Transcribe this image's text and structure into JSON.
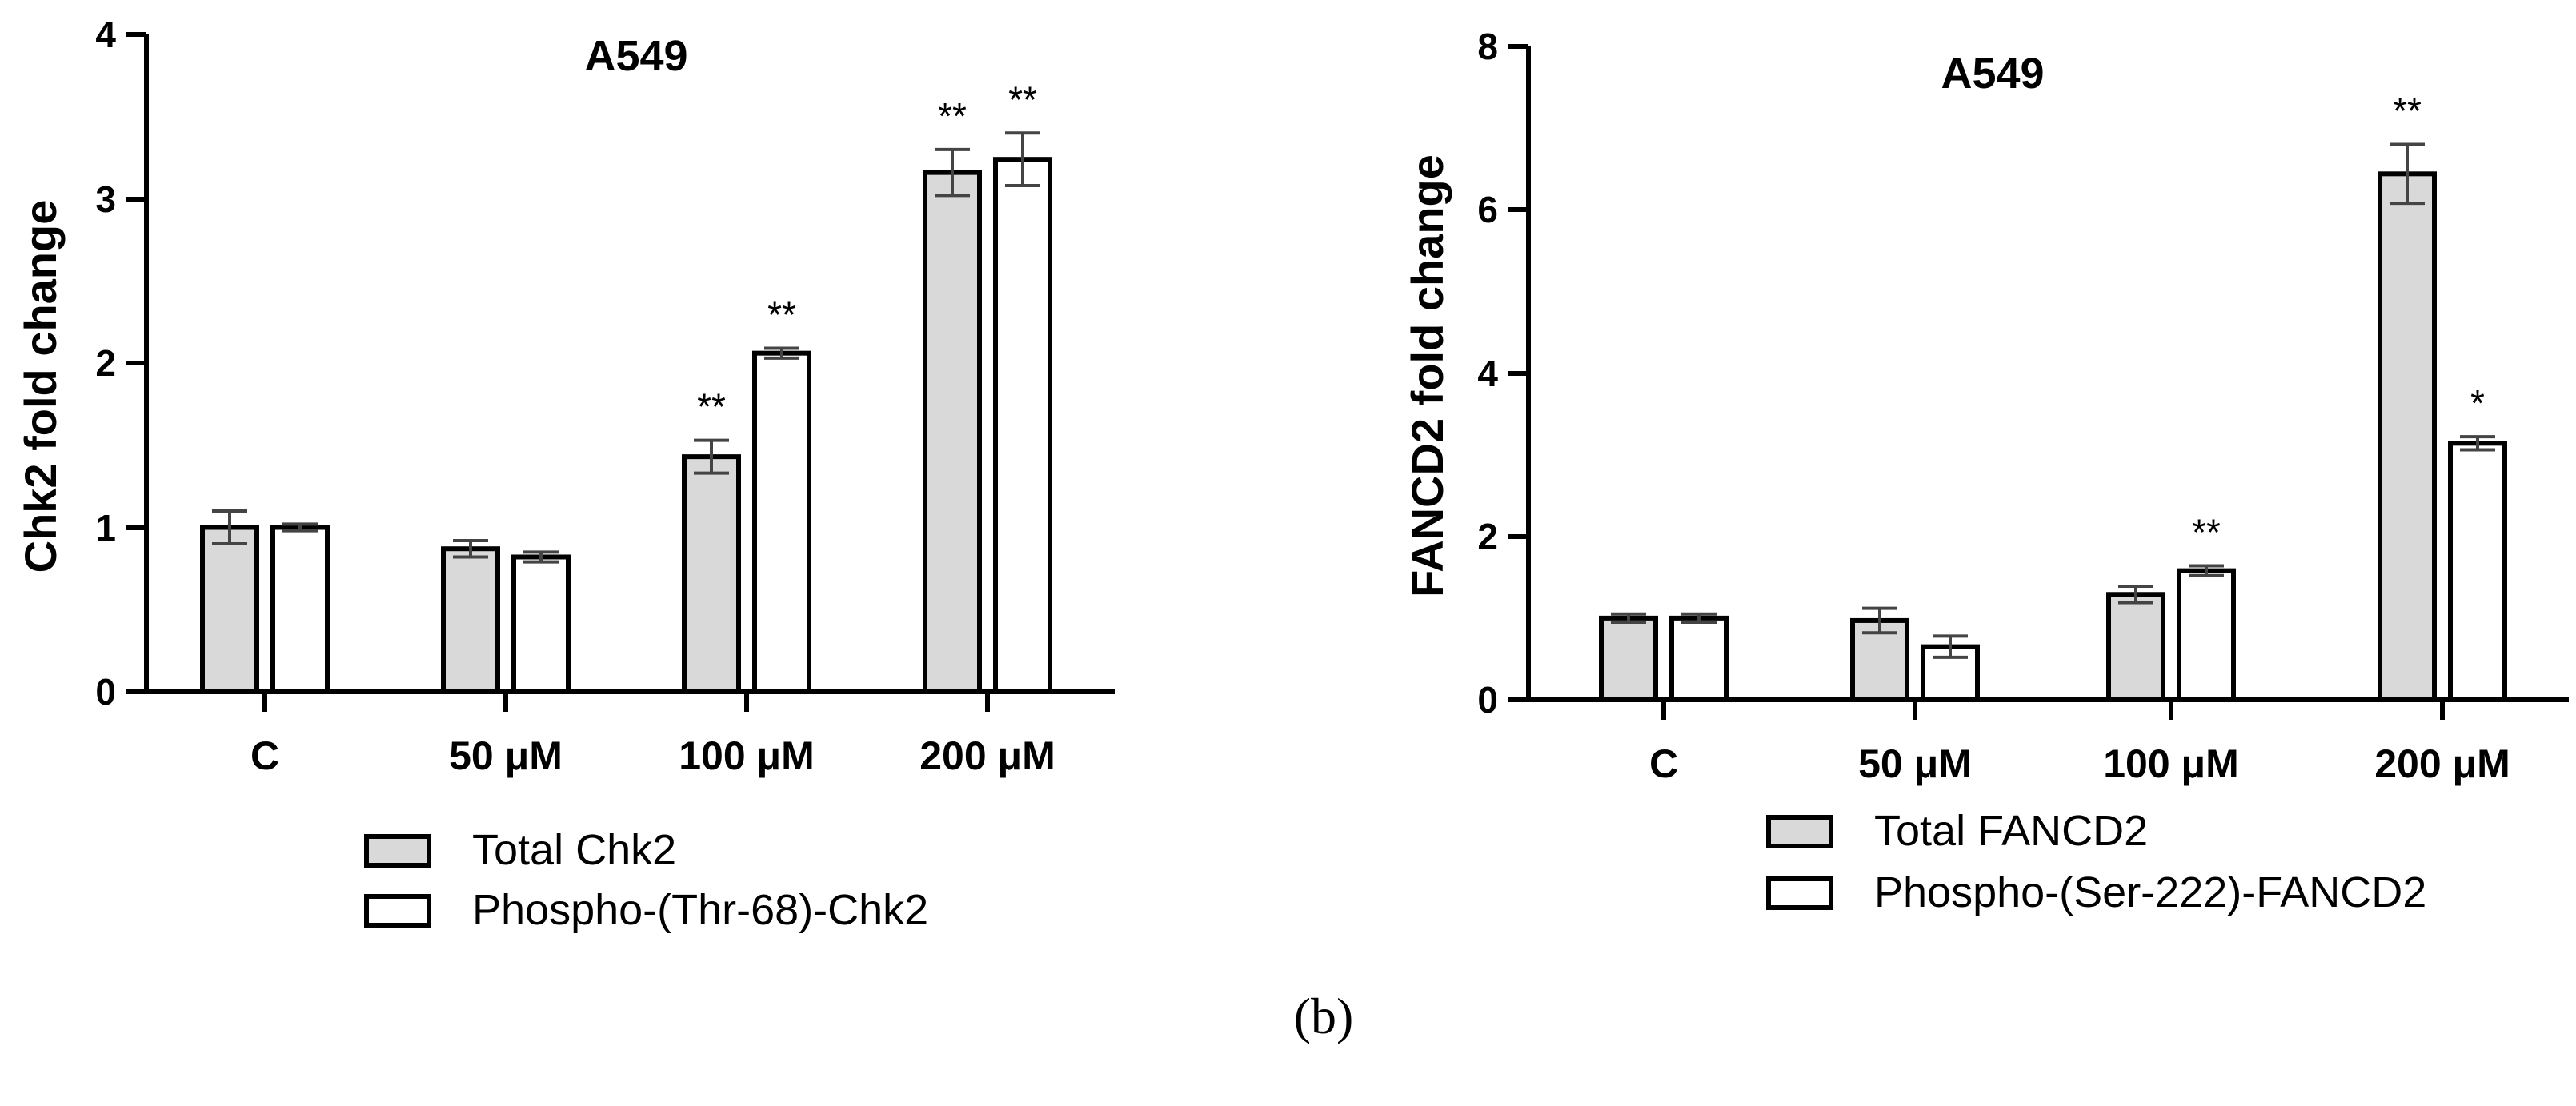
{
  "panel_label": "(b)",
  "colors": {
    "total": "#d9d9d9",
    "phospho": "#ffffff",
    "stroke": "#000000"
  },
  "chart_data": [
    {
      "type": "bar",
      "title": "A549",
      "ylabel": "Chk2 fold change",
      "xlabel": "",
      "ylim": [
        0,
        4
      ],
      "yticks": [
        "0",
        "1",
        "2",
        "3",
        "4"
      ],
      "categories": [
        "C",
        "50 μM",
        "100 μM",
        "200 μM"
      ],
      "series": [
        {
          "name": "Total Chk2",
          "color": "#d9d9d9",
          "values": [
            1.0,
            0.87,
            1.43,
            3.16
          ],
          "errors": [
            0.1,
            0.05,
            0.1,
            0.14
          ],
          "significance": [
            "",
            "",
            "**",
            "**"
          ]
        },
        {
          "name": "Phospho-(Thr-68)-Chk2",
          "color": "#ffffff",
          "values": [
            1.0,
            0.82,
            2.06,
            3.24
          ],
          "errors": [
            0.02,
            0.03,
            0.03,
            0.16
          ],
          "significance": [
            "",
            "",
            "**",
            "**"
          ]
        }
      ],
      "legend_position": "bottom"
    },
    {
      "type": "bar",
      "title": "A549",
      "ylabel": "FANCD2 fold change",
      "xlabel": "",
      "ylim": [
        0,
        8
      ],
      "yticks": [
        "0",
        "2",
        "4",
        "6",
        "8"
      ],
      "categories": [
        "C",
        "50 μM",
        "100 μM",
        "200 μM"
      ],
      "series": [
        {
          "name": "Total FANCD2",
          "color": "#d9d9d9",
          "values": [
            1.0,
            0.97,
            1.29,
            6.44
          ],
          "errors": [
            0.05,
            0.15,
            0.1,
            0.36
          ],
          "significance": [
            "",
            "",
            "",
            "**"
          ]
        },
        {
          "name": "Phospho-(Ser-222)-FANCD2",
          "color": "#ffffff",
          "values": [
            1.0,
            0.65,
            1.58,
            3.14
          ],
          "errors": [
            0.05,
            0.13,
            0.06,
            0.08
          ],
          "significance": [
            "",
            "",
            "**",
            "*"
          ]
        }
      ],
      "legend_position": "bottom"
    }
  ]
}
